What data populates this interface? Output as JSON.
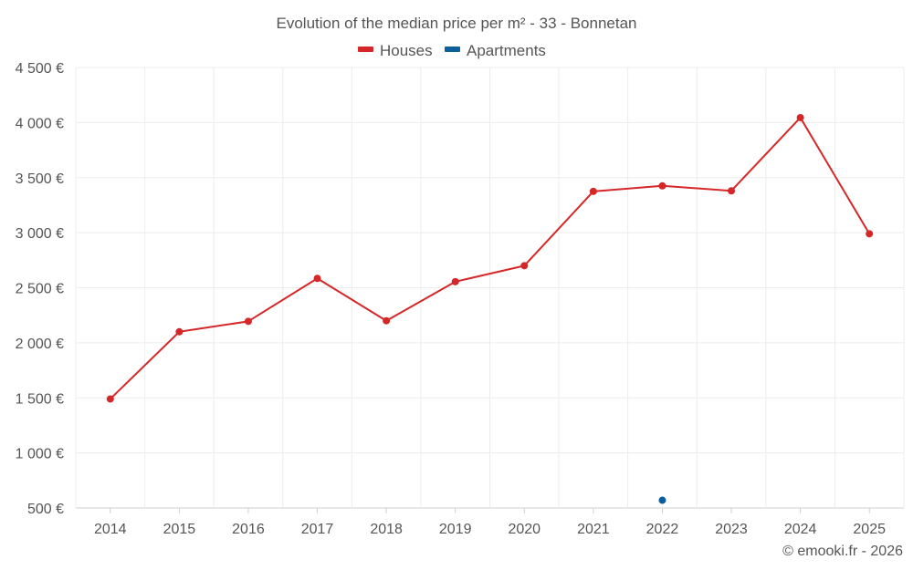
{
  "chart_data": {
    "type": "line",
    "title": "Evolution of the median price per m² - 33 - Bonnetan",
    "categories": [
      "2014",
      "2015",
      "2016",
      "2017",
      "2018",
      "2019",
      "2020",
      "2021",
      "2022",
      "2023",
      "2024",
      "2025"
    ],
    "series": [
      {
        "name": "Houses",
        "color": "#d62728",
        "values": [
          1490,
          2100,
          2195,
          2585,
          2200,
          2555,
          2700,
          3375,
          3425,
          3380,
          4045,
          2990
        ]
      },
      {
        "name": "Apartments",
        "color": "#0b5f9c",
        "values": [
          null,
          null,
          null,
          null,
          null,
          null,
          null,
          null,
          570,
          null,
          null,
          null
        ]
      }
    ],
    "ylim": [
      500,
      4500
    ],
    "yticks": [
      500,
      1000,
      1500,
      2000,
      2500,
      3000,
      3500,
      4000,
      4500
    ],
    "ytick_labels": [
      "500 €",
      "1 000 €",
      "1 500 €",
      "2 000 €",
      "2 500 €",
      "3 000 €",
      "3 500 €",
      "4 000 €",
      "4 500 €"
    ],
    "xlabel": "",
    "ylabel": "",
    "grid": true,
    "legend_position": "top-center",
    "credit": "© emooki.fr - 2026"
  }
}
